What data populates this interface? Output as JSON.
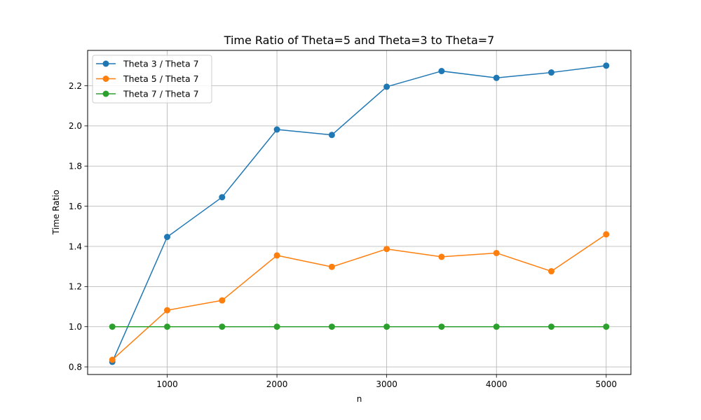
{
  "chart_data": {
    "type": "line",
    "title": "Time Ratio of Theta=5 and Theta=3 to Theta=7",
    "xlabel": "n",
    "ylabel": "Time Ratio",
    "xlim": [
      275,
      5225
    ],
    "ylim": [
      0.762,
      2.376
    ],
    "x_ticks": [
      1000,
      2000,
      3000,
      4000,
      5000
    ],
    "y_ticks": [
      0.8,
      1.0,
      1.2,
      1.4,
      1.6,
      1.8,
      2.0,
      2.2
    ],
    "x_tick_labels": [
      "1000",
      "2000",
      "3000",
      "4000",
      "5000"
    ],
    "y_tick_labels": [
      "0.8",
      "1.0",
      "1.2",
      "1.4",
      "1.6",
      "1.8",
      "2.0",
      "2.2"
    ],
    "grid": true,
    "legend_position": "top-left",
    "x": [
      500,
      1000,
      1500,
      2000,
      2500,
      3000,
      3500,
      4000,
      4500,
      5000
    ],
    "series": [
      {
        "name": "Theta 3 / Theta 7",
        "color": "#1f77b4",
        "values": [
          0.825,
          1.447,
          1.645,
          1.982,
          1.955,
          2.195,
          2.273,
          2.239,
          2.266,
          2.3
        ]
      },
      {
        "name": "Theta 5 / Theta 7",
        "color": "#ff7f0e",
        "values": [
          0.835,
          1.082,
          1.131,
          1.355,
          1.298,
          1.387,
          1.348,
          1.367,
          1.276,
          1.46
        ]
      },
      {
        "name": "Theta 7 / Theta 7",
        "color": "#2ca02c",
        "values": [
          1.0,
          1.0,
          1.0,
          1.0,
          1.0,
          1.0,
          1.0,
          1.0,
          1.0,
          1.0
        ]
      }
    ]
  }
}
